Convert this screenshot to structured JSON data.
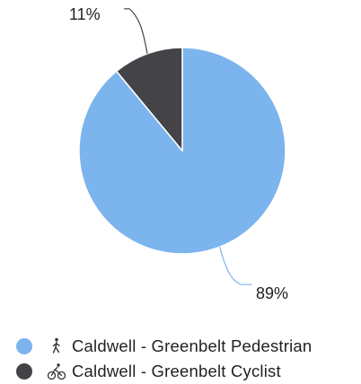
{
  "chart_data": {
    "type": "pie",
    "slices": [
      {
        "label": "Caldwell - Greenbelt Pedestrian",
        "value": 89,
        "value_label": "89%",
        "color": "#7cb4ee",
        "icon": "pedestrian-icon"
      },
      {
        "label": "Caldwell - Greenbelt Cyclist",
        "value": 11,
        "value_label": "11%",
        "color": "#434348",
        "icon": "cyclist-icon"
      }
    ],
    "legend_position": "bottom-left"
  }
}
